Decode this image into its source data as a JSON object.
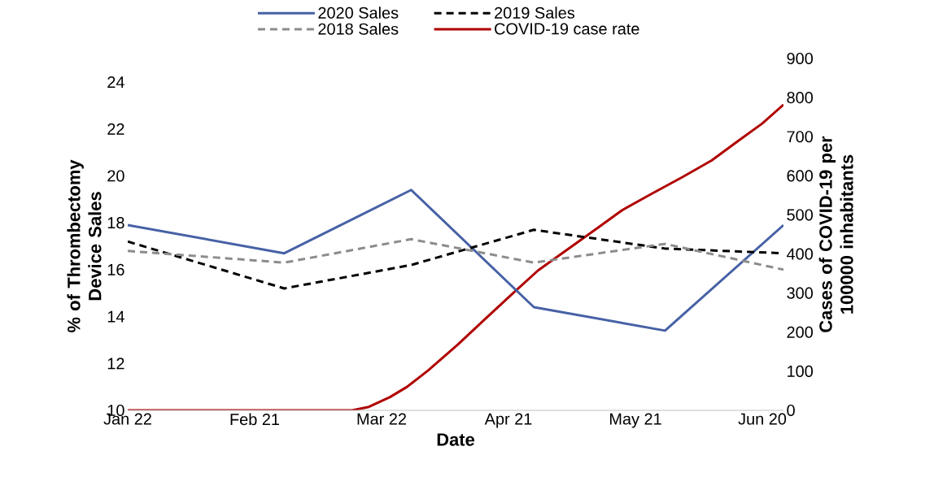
{
  "chart_data": {
    "type": "line",
    "xlabel": "Date",
    "ylabel": "% of Thrombectomy Device Sales",
    "y2label": "Cases of COVID-19 per 100000 inhabitants",
    "legend": "top",
    "xlim": [
      "2020-01-22",
      "2020-06-25"
    ],
    "xticks": [
      {
        "value": "2020-01-22",
        "label": "Jan 22"
      },
      {
        "value": "2020-02-21",
        "label": "Feb 21"
      },
      {
        "value": "2020-03-22",
        "label": "Mar 22"
      },
      {
        "value": "2020-04-21",
        "label": "Apr 21"
      },
      {
        "value": "2020-05-21",
        "label": "May 21"
      },
      {
        "value": "2020-06-20",
        "label": "Jun 20"
      }
    ],
    "ylim": [
      10,
      24
    ],
    "yticks": [
      10,
      12,
      14,
      16,
      18,
      20,
      22,
      24
    ],
    "y2lim": [
      0,
      900
    ],
    "y2ticks": [
      0,
      100,
      200,
      300,
      400,
      500,
      600,
      700,
      800,
      900
    ],
    "series": [
      {
        "name": "2020 Sales",
        "color": "#4661a5",
        "line_style": "solid",
        "x": [
          "2020-01-22",
          "2020-02-28",
          "2020-03-29",
          "2020-04-27",
          "2020-05-28",
          "2020-06-25"
        ],
        "values": [
          17.9,
          16.7,
          19.4,
          14.4,
          13.4,
          17.9
        ]
      },
      {
        "name": "2019 Sales",
        "color": "#000000",
        "line_style": "dashed",
        "x": [
          "2020-01-22",
          "2020-02-28",
          "2020-03-29",
          "2020-04-27",
          "2020-05-28",
          "2020-06-25"
        ],
        "values": [
          17.2,
          15.2,
          16.2,
          17.7,
          16.9,
          16.7
        ]
      },
      {
        "name": "2018 Sales",
        "color": "#8c8c8c",
        "line_style": "dashed",
        "x": [
          "2020-01-22",
          "2020-02-28",
          "2020-03-29",
          "2020-04-27",
          "2020-05-28",
          "2020-06-25"
        ],
        "values": [
          16.8,
          16.3,
          17.3,
          16.3,
          17.1,
          16.0
        ]
      },
      {
        "name": "COVID-19 case rate",
        "color": "#b00000",
        "line_style": "solid",
        "axis": "y2",
        "x": [
          "2020-01-22",
          "2020-03-15",
          "2020-03-19",
          "2020-03-24",
          "2020-03-28",
          "2020-04-02",
          "2020-04-09",
          "2020-04-15",
          "2020-04-22",
          "2020-04-28",
          "2020-05-05",
          "2020-05-12",
          "2020-05-18",
          "2020-05-25",
          "2020-06-01",
          "2020-06-08",
          "2020-06-14",
          "2020-06-20",
          "2020-06-25"
        ],
        "values": [
          0,
          0,
          9,
          34,
          60,
          102,
          168,
          229,
          299,
          358,
          412,
          466,
          513,
          555,
          596,
          639,
          687,
          734,
          782
        ]
      }
    ]
  }
}
